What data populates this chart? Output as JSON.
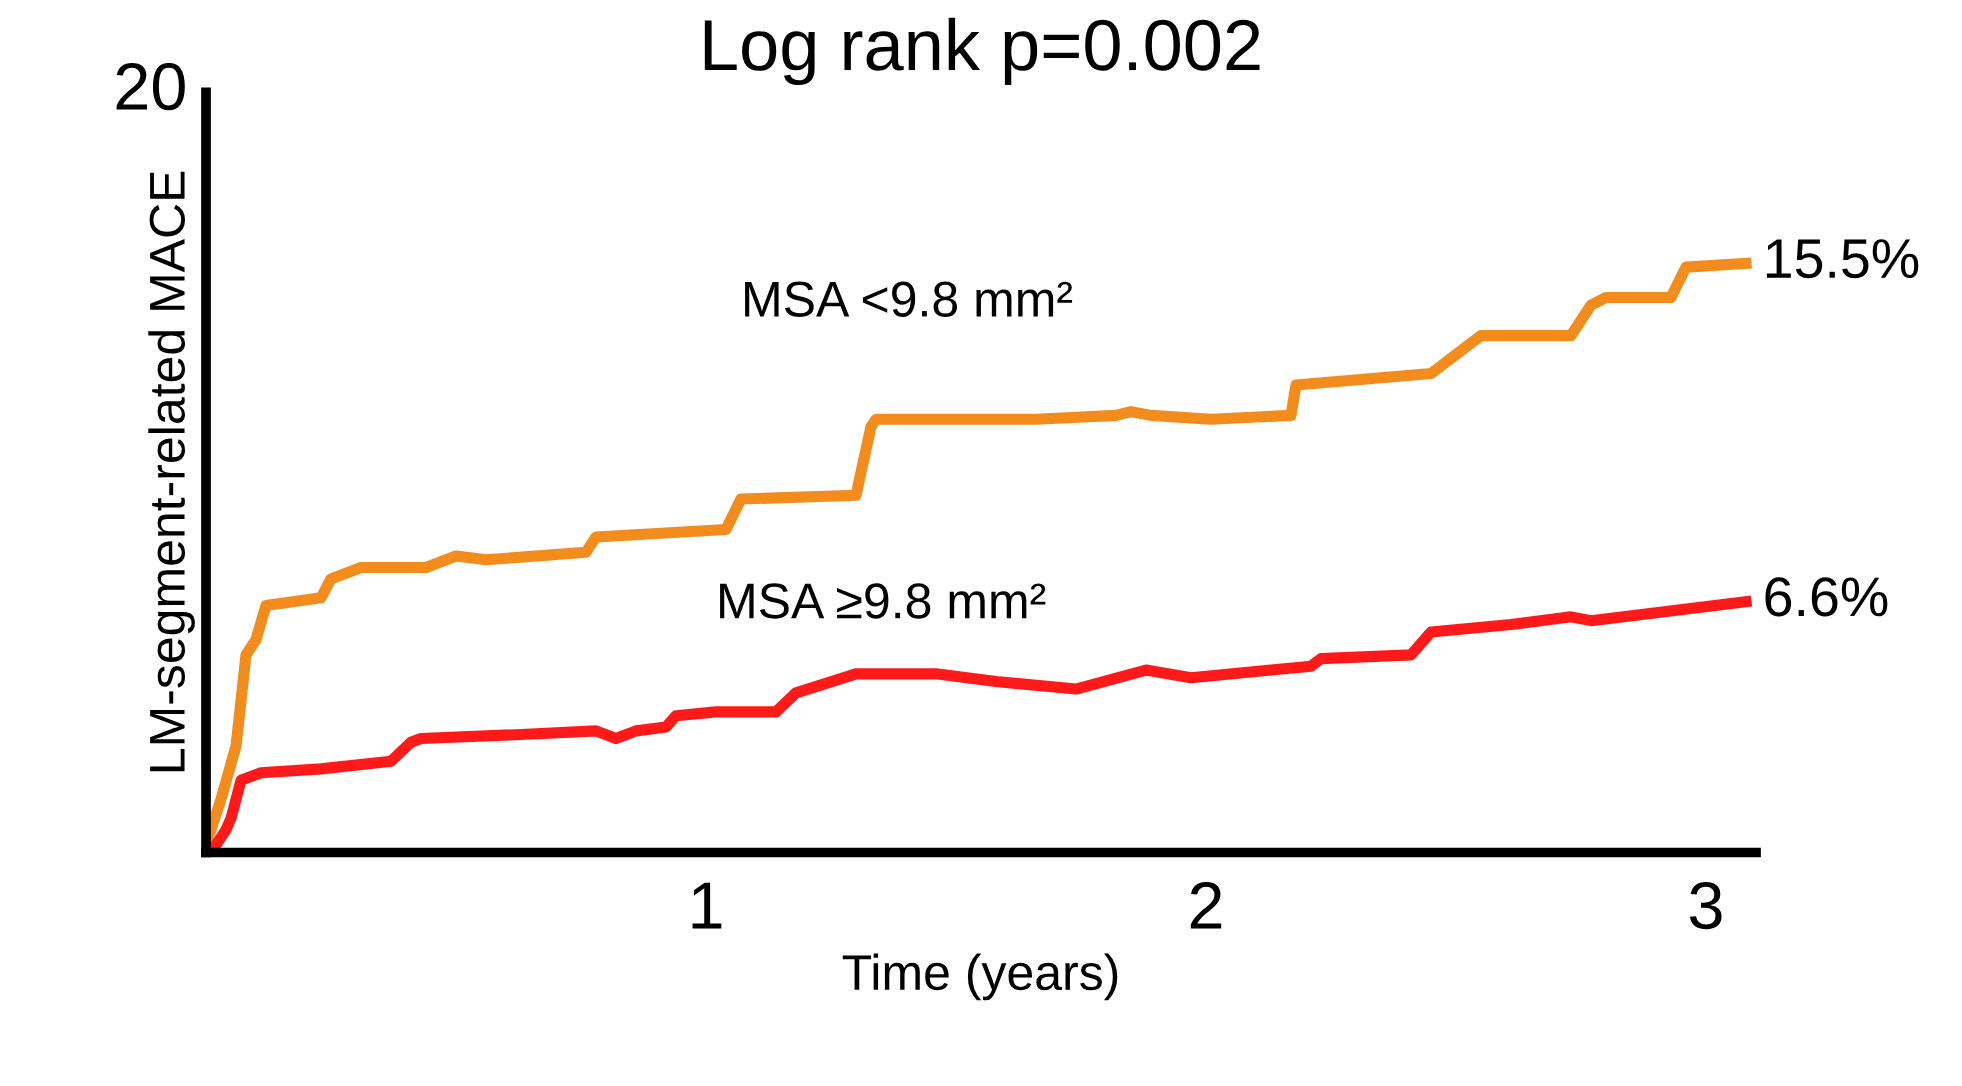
{
  "chart_data": {
    "type": "line",
    "title": "Log rank p=0.002",
    "xlabel": "Time (years)",
    "ylabel": "LM-segment-related MACE",
    "xlim": [
      0,
      3.1
    ],
    "xticks": [
      1,
      2,
      3
    ],
    "ylim": [
      0,
      20
    ],
    "annotations": [
      "20"
    ],
    "grid": false,
    "legend": false,
    "marker": "none",
    "line_style": "solid",
    "series": [
      {
        "name": "MSA <9.8 mm²",
        "color": "#f28c1c",
        "x": [
          0.0,
          0.03,
          0.06,
          0.08,
          0.1,
          0.12,
          0.23,
          0.25,
          0.31,
          0.44,
          0.5,
          0.56,
          0.76,
          0.78,
          1.04,
          1.07,
          1.3,
          1.33,
          1.34,
          1.66,
          1.82,
          1.85,
          1.89,
          2.01,
          2.17,
          2.18,
          2.45,
          2.51,
          2.55,
          2.73,
          2.77,
          2.8,
          2.93,
          2.96,
          3.08
        ],
        "values": [
          0.2,
          1.4,
          2.8,
          5.2,
          5.6,
          6.5,
          6.7,
          7.2,
          7.5,
          7.5,
          7.8,
          7.7,
          7.9,
          8.3,
          8.5,
          9.3,
          9.4,
          11.2,
          11.4,
          11.4,
          11.5,
          11.6,
          11.5,
          11.4,
          11.5,
          12.3,
          12.6,
          13.2,
          13.6,
          13.6,
          14.4,
          14.6,
          14.6,
          15.4,
          15.5
        ],
        "value_labels": [
          null,
          null,
          null,
          null,
          null,
          null,
          null,
          null,
          null,
          null,
          null,
          null,
          null,
          null,
          null,
          null,
          null,
          null,
          null,
          null,
          null,
          null,
          null,
          null,
          null,
          null,
          null,
          null,
          null,
          null,
          null,
          null,
          null,
          null,
          "15.5%"
        ]
      },
      {
        "name": "MSA ≥9.8 mm²",
        "color": "#ff1a1a",
        "x": [
          0.01,
          0.04,
          0.05,
          0.07,
          0.11,
          0.23,
          0.37,
          0.41,
          0.43,
          0.62,
          0.78,
          0.82,
          0.86,
          0.92,
          0.94,
          1.02,
          1.14,
          1.18,
          1.3,
          1.46,
          1.58,
          1.74,
          1.88,
          1.97,
          2.13,
          2.21,
          2.23,
          2.41,
          2.45,
          2.61,
          2.73,
          2.77,
          3.08
        ],
        "values": [
          0.0,
          0.6,
          0.9,
          1.9,
          2.1,
          2.2,
          2.4,
          2.9,
          3.0,
          3.1,
          3.2,
          3.0,
          3.2,
          3.3,
          3.6,
          3.7,
          3.7,
          4.2,
          4.7,
          4.7,
          4.5,
          4.3,
          4.8,
          4.6,
          4.8,
          4.9,
          5.1,
          5.2,
          5.8,
          6.0,
          6.2,
          6.1,
          6.6
        ],
        "value_labels": [
          null,
          null,
          null,
          null,
          null,
          null,
          null,
          null,
          null,
          null,
          null,
          null,
          null,
          null,
          null,
          null,
          null,
          null,
          null,
          null,
          null,
          null,
          null,
          null,
          null,
          null,
          null,
          null,
          null,
          null,
          null,
          null,
          "6.6%"
        ]
      }
    ]
  }
}
